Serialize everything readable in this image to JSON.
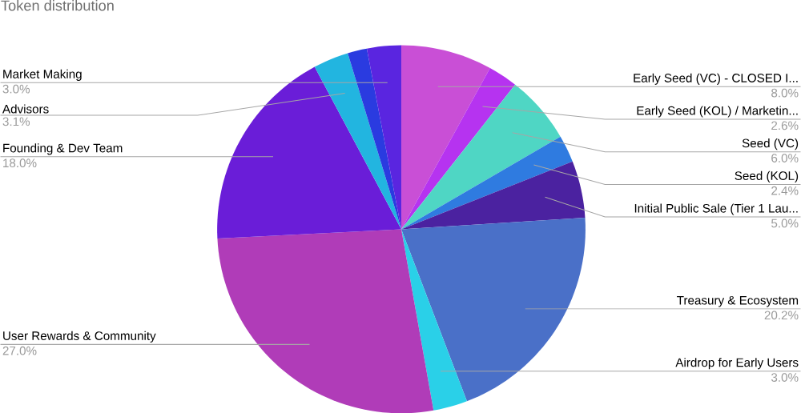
{
  "chart_data": {
    "type": "pie",
    "title": "Token distribution",
    "categories": [
      "Early Seed (VC) - CLOSED I...",
      "Early Seed (KOL) / Marketin...",
      "Seed (VC)",
      "Seed (KOL)",
      "Initial Public Sale (Tier 1 Lau...",
      "Treasury & Ecosystem",
      "Airdrop for Early Users",
      "User Rewards & Community",
      "Founding & Dev Team",
      "Advisors",
      null,
      "Market Making"
    ],
    "values": [
      8.0,
      2.6,
      6.0,
      2.4,
      5.0,
      20.2,
      3.0,
      27.0,
      18.0,
      3.1,
      1.7,
      3.0
    ],
    "colors": [
      "#c94fd6",
      "#b633f0",
      "#4fd6c4",
      "#2f7be0",
      "#4b22a0",
      "#4a70c8",
      "#2ad0e8",
      "#b03cb8",
      "#6a1dd8",
      "#22b5e0",
      "#2a3be0",
      "#5a25e0"
    ],
    "value_labels": [
      "8.0%",
      "2.6%",
      "6.0%",
      "2.4%",
      "5.0%",
      "20.2%",
      "3.0%",
      "27.0%",
      "18.0%",
      "3.1%",
      null,
      "3.0%"
    ]
  }
}
